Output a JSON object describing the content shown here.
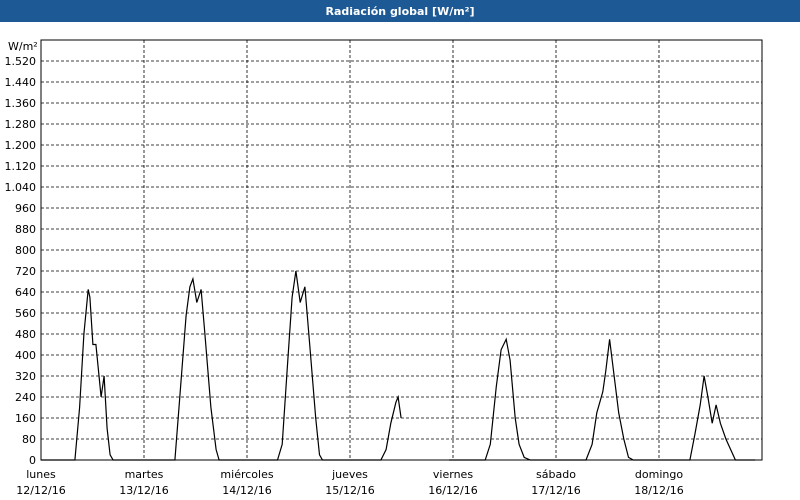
{
  "chart_data": {
    "type": "line",
    "title": "Radiación global [W/m²]",
    "y_unit": "W/m²",
    "xlim": [
      0,
      168
    ],
    "ylim": [
      0,
      1600
    ],
    "xticks": [
      {
        "value": 0,
        "label": "lunes",
        "date": "12/12/16"
      },
      {
        "value": 24,
        "label": "martes",
        "date": "13/12/16"
      },
      {
        "value": 48,
        "label": "miércoles",
        "date": "14/12/16"
      },
      {
        "value": 72,
        "label": "jueves",
        "date": "15/12/16"
      },
      {
        "value": 96,
        "label": "viernes",
        "date": "16/12/16"
      },
      {
        "value": 120,
        "label": "sábado",
        "date": "17/12/16"
      },
      {
        "value": 144,
        "label": "domingo",
        "date": "18/12/16"
      }
    ],
    "yticks": [
      0,
      80,
      160,
      240,
      320,
      400,
      480,
      560,
      640,
      720,
      800,
      880,
      960,
      {
        "value": 1040,
        "label": "1.040"
      },
      {
        "value": 1120,
        "label": "1.120"
      },
      {
        "value": 1200,
        "label": "1.200"
      },
      {
        "value": 1280,
        "label": "1.280"
      },
      {
        "value": 1360,
        "label": "1.360"
      },
      {
        "value": 1440,
        "label": "1.440"
      },
      {
        "value": 1520,
        "label": "1.520"
      }
    ],
    "grid": true,
    "color": "#000000",
    "x": [
      0,
      7.9,
      9,
      10,
      11,
      11.4,
      12.1,
      12.8,
      14,
      14.7,
      15.4,
      16.1,
      16.8,
      31.2,
      32.4,
      33.8,
      34.7,
      35.4,
      36.3,
      37.3,
      38.2,
      39.6,
      40.8,
      41.5,
      55.1,
      56.2,
      57.5,
      58.5,
      59.4,
      60.4,
      61.5,
      62.6,
      64,
      64.9,
      65.6,
      79.2,
      80.4,
      81.5,
      82.7,
      83.2,
      83.9,
      89,
      95.1,
      103.5,
      104.7,
      106.1,
      107.2,
      108.4,
      109.3,
      110.5,
      111.4,
      112.6,
      114,
      127,
      128.4,
      129.5,
      130.9,
      131.6,
      132.5,
      133.4,
      134.6,
      135.8,
      136.9,
      138,
      151.2,
      152.4,
      153.6,
      154.5,
      155.4,
      156.4,
      157.3,
      158.3,
      159.6,
      161.8,
      166.4
    ],
    "values": [
      0,
      0,
      200,
      480,
      650,
      620,
      440,
      440,
      240,
      320,
      120,
      20,
      0,
      0,
      250,
      550,
      660,
      690,
      600,
      650,
      480,
      200,
      40,
      0,
      0,
      60,
      380,
      620,
      720,
      600,
      660,
      440,
      160,
      20,
      0,
      0,
      40,
      140,
      220,
      240,
      160,
      null,
      0,
      0,
      60,
      280,
      420,
      460,
      380,
      160,
      60,
      10,
      0,
      0,
      60,
      180,
      260,
      340,
      460,
      340,
      180,
      80,
      10,
      0,
      0,
      100,
      210,
      320,
      240,
      140,
      210,
      140,
      80,
      0,
      0
    ]
  }
}
